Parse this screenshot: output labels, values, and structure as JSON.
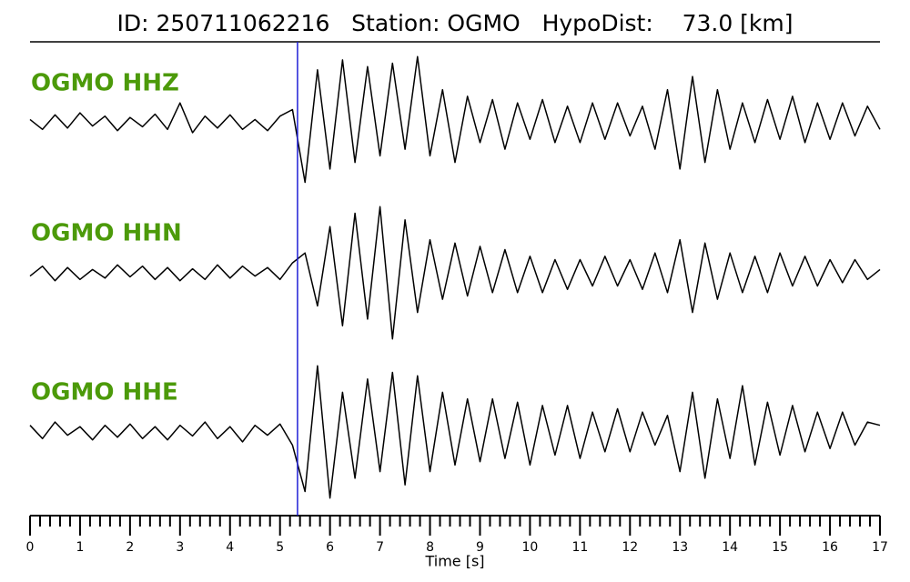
{
  "chart_data": {
    "type": "line",
    "title": "ID: 250711062216   Station: OGMO   HypoDist:    73.0 [km]",
    "x_label": "Time [s]",
    "x": [
      0,
      0.25,
      0.5,
      0.75,
      1,
      1.25,
      1.5,
      1.75,
      2,
      2.25,
      2.5,
      2.75,
      3,
      3.25,
      3.5,
      3.75,
      4,
      4.25,
      4.5,
      4.75,
      5,
      5.25,
      5.5,
      5.75,
      6,
      6.25,
      6.5,
      6.75,
      7,
      7.25,
      7.5,
      7.75,
      8,
      8.25,
      8.5,
      8.75,
      9,
      9.25,
      9.5,
      9.75,
      10,
      10.25,
      10.5,
      10.75,
      11,
      11.25,
      11.5,
      11.75,
      12,
      12.25,
      12.5,
      12.75,
      13,
      13.25,
      13.5,
      13.75,
      14,
      14.25,
      14.5,
      14.75,
      15,
      15.25,
      15.5,
      15.75,
      16,
      16.25,
      16.5,
      16.75,
      17
    ],
    "xlim": [
      0,
      17
    ],
    "xticks": [
      0,
      1,
      2,
      3,
      4,
      5,
      6,
      7,
      8,
      9,
      10,
      11,
      12,
      13,
      14,
      15,
      16,
      17
    ],
    "xminor_step": 0.2,
    "ylim": [
      -1.1,
      1.1
    ],
    "label_color": "#4c9a0a",
    "pick_x": 5.35,
    "pick_color": "#1f1fd6",
    "series": [
      {
        "name": "OGMO HHZ",
        "color": "#000000",
        "values": [
          0.05,
          -0.1,
          0.12,
          -0.08,
          0.15,
          -0.05,
          0.1,
          -0.12,
          0.08,
          -0.06,
          0.13,
          -0.1,
          0.3,
          -0.15,
          0.1,
          -0.08,
          0.12,
          -0.1,
          0.05,
          -0.12,
          0.1,
          0.2,
          -0.9,
          0.8,
          -0.7,
          0.95,
          -0.6,
          0.85,
          -0.5,
          0.9,
          -0.4,
          1.0,
          -0.5,
          0.5,
          -0.6,
          0.4,
          -0.3,
          0.35,
          -0.4,
          0.3,
          -0.25,
          0.35,
          -0.3,
          0.25,
          -0.3,
          0.3,
          -0.25,
          0.3,
          -0.2,
          0.25,
          -0.4,
          0.5,
          -0.7,
          0.7,
          -0.6,
          0.5,
          -0.4,
          0.3,
          -0.3,
          0.35,
          -0.25,
          0.4,
          -0.3,
          0.3,
          -0.25,
          0.3,
          -0.2,
          0.25,
          -0.1
        ]
      },
      {
        "name": "OGMO HHN",
        "color": "#000000",
        "values": [
          -0.05,
          0.1,
          -0.12,
          0.08,
          -0.1,
          0.05,
          -0.08,
          0.12,
          -0.06,
          0.1,
          -0.1,
          0.08,
          -0.12,
          0.06,
          -0.1,
          0.12,
          -0.08,
          0.1,
          -0.05,
          0.08,
          -0.1,
          0.15,
          0.3,
          -0.5,
          0.7,
          -0.8,
          0.9,
          -0.7,
          1.0,
          -1.0,
          0.8,
          -0.6,
          0.5,
          -0.4,
          0.45,
          -0.35,
          0.4,
          -0.3,
          0.35,
          -0.3,
          0.25,
          -0.3,
          0.2,
          -0.25,
          0.2,
          -0.2,
          0.25,
          -0.2,
          0.2,
          -0.25,
          0.3,
          -0.3,
          0.5,
          -0.6,
          0.45,
          -0.4,
          0.3,
          -0.3,
          0.25,
          -0.3,
          0.3,
          -0.2,
          0.25,
          -0.2,
          0.2,
          -0.15,
          0.2,
          -0.1,
          0.05
        ]
      },
      {
        "name": "OGMO HHE",
        "color": "#000000",
        "values": [
          0.1,
          -0.1,
          0.15,
          -0.05,
          0.08,
          -0.12,
          0.1,
          -0.08,
          0.12,
          -0.1,
          0.08,
          -0.12,
          0.1,
          -0.06,
          0.15,
          -0.1,
          0.08,
          -0.15,
          0.1,
          -0.05,
          0.12,
          -0.2,
          -0.9,
          1.0,
          -1.0,
          0.6,
          -0.7,
          0.8,
          -0.6,
          0.9,
          -0.8,
          0.85,
          -0.6,
          0.6,
          -0.5,
          0.5,
          -0.45,
          0.5,
          -0.4,
          0.45,
          -0.5,
          0.4,
          -0.35,
          0.4,
          -0.4,
          0.3,
          -0.3,
          0.35,
          -0.3,
          0.3,
          -0.2,
          0.25,
          -0.6,
          0.6,
          -0.7,
          0.5,
          -0.4,
          0.7,
          -0.5,
          0.45,
          -0.35,
          0.4,
          -0.3,
          0.3,
          -0.25,
          0.3,
          -0.2,
          0.15,
          0.1
        ]
      }
    ]
  }
}
